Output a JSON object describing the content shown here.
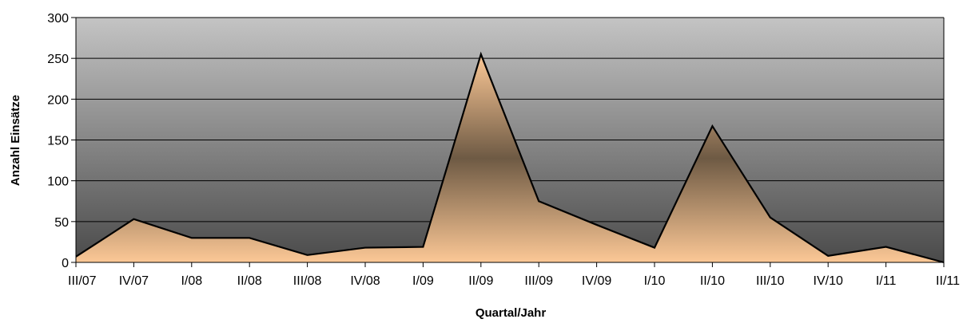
{
  "chart_data": {
    "type": "area",
    "title": "",
    "xlabel": "Quartal/Jahr",
    "ylabel": "Anzahl Einsätze",
    "categories": [
      "III/07",
      "IV/07",
      "I/08",
      "II/08",
      "III/08",
      "IV/08",
      "I/09",
      "II/09",
      "III/09",
      "IV/09",
      "I/10",
      "II/10",
      "III/10",
      "IV/10",
      "I/11",
      "II/11"
    ],
    "values": [
      7,
      53,
      30,
      30,
      9,
      18,
      19,
      255,
      75,
      46,
      18,
      167,
      55,
      8,
      19,
      0
    ],
    "ylim": [
      0,
      300
    ],
    "yticks": [
      0,
      50,
      100,
      150,
      200,
      250,
      300
    ],
    "grid": true,
    "legend": "none",
    "colors": {
      "area_top": "#6e5a44",
      "area_bottom": "#fcc896",
      "plot_bg_top": "#c4c4c4",
      "plot_bg_bottom": "#4a4a4a",
      "line": "#000000",
      "gridline": "#000000"
    }
  }
}
